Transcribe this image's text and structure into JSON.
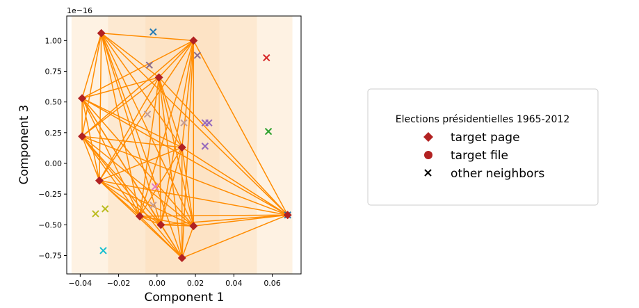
{
  "chart_data": {
    "type": "scatter",
    "xlabel": "Component 1",
    "ylabel": "Component 3",
    "y_offset_text": "1e−16",
    "xlim": [
      -0.047,
      0.075
    ],
    "ylim": [
      -0.9,
      1.2
    ],
    "xticks": [
      -0.04,
      -0.02,
      0.0,
      0.02,
      0.04,
      0.06
    ],
    "xtick_labels": [
      "−0.04",
      "−0.02",
      "0.00",
      "0.02",
      "0.04",
      "0.06"
    ],
    "yticks": [
      -0.75,
      -0.5,
      -0.25,
      0.0,
      0.25,
      0.5,
      0.75,
      1.0
    ],
    "ytick_labels": [
      "−0.75",
      "−0.50",
      "−0.25",
      "0.00",
      "0.25",
      "0.50",
      "0.75",
      "1.00"
    ],
    "grid": false,
    "legend": {
      "placement": "right",
      "title": "Elections présidentielles 1965-2012",
      "entries": [
        {
          "label": "target page",
          "marker": "diamond",
          "color": "#b22222"
        },
        {
          "label": "target file",
          "marker": "circle",
          "color": "#b22222"
        },
        {
          "label": "other neighbors",
          "marker": "x",
          "color": "#000000"
        }
      ]
    },
    "background_bands": {
      "color": "#fdd9b0",
      "bands": [
        {
          "x0": -0.0445,
          "x1": 0.0705,
          "opacity": 0.35
        },
        {
          "x0": -0.0255,
          "x1": 0.052,
          "opacity": 0.35
        },
        {
          "x0": -0.006,
          "x1": 0.0325,
          "opacity": 0.35
        }
      ]
    },
    "edge_color": "#ff8c00",
    "target_pages": [
      {
        "x": -0.029,
        "y": 1.06
      },
      {
        "x": 0.019,
        "y": 1.0
      },
      {
        "x": -0.039,
        "y": 0.53
      },
      {
        "x": -0.039,
        "y": 0.22
      },
      {
        "x": -0.03,
        "y": -0.14
      },
      {
        "x": -0.009,
        "y": -0.43
      },
      {
        "x": 0.002,
        "y": -0.5
      },
      {
        "x": 0.019,
        "y": -0.51
      },
      {
        "x": 0.013,
        "y": -0.77
      },
      {
        "x": 0.013,
        "y": 0.13
      },
      {
        "x": 0.001,
        "y": 0.7
      },
      {
        "x": 0.068,
        "y": -0.42
      }
    ],
    "neighbors": [
      {
        "x": -0.002,
        "y": 1.07,
        "color": "#1f77b4"
      },
      {
        "x": 0.021,
        "y": 0.88,
        "color": "#8c6d8c"
      },
      {
        "x": 0.057,
        "y": 0.86,
        "color": "#d62728"
      },
      {
        "x": 0.058,
        "y": 0.26,
        "color": "#2ca02c"
      },
      {
        "x": 0.025,
        "y": 0.33,
        "color": "#9467bd"
      },
      {
        "x": 0.027,
        "y": 0.33,
        "color": "#9467bd"
      },
      {
        "x": 0.025,
        "y": 0.14,
        "color": "#9467bd"
      },
      {
        "x": 0.014,
        "y": 0.33,
        "color": "#c49c94"
      },
      {
        "x": -0.005,
        "y": 0.4,
        "color": "#c49c94"
      },
      {
        "x": -0.004,
        "y": 0.8,
        "color": "#8c6d8c"
      },
      {
        "x": -0.001,
        "y": -0.19,
        "color": "#e377c2"
      },
      {
        "x": -0.002,
        "y": -0.34,
        "color": "#c49c94"
      },
      {
        "x": -0.032,
        "y": -0.41,
        "color": "#bcbd22"
      },
      {
        "x": -0.027,
        "y": -0.37,
        "color": "#bcbd22"
      },
      {
        "x": -0.028,
        "y": -0.71,
        "color": "#17becf"
      },
      {
        "x": 0.068,
        "y": -0.42,
        "color": "#1f77b4"
      }
    ]
  }
}
